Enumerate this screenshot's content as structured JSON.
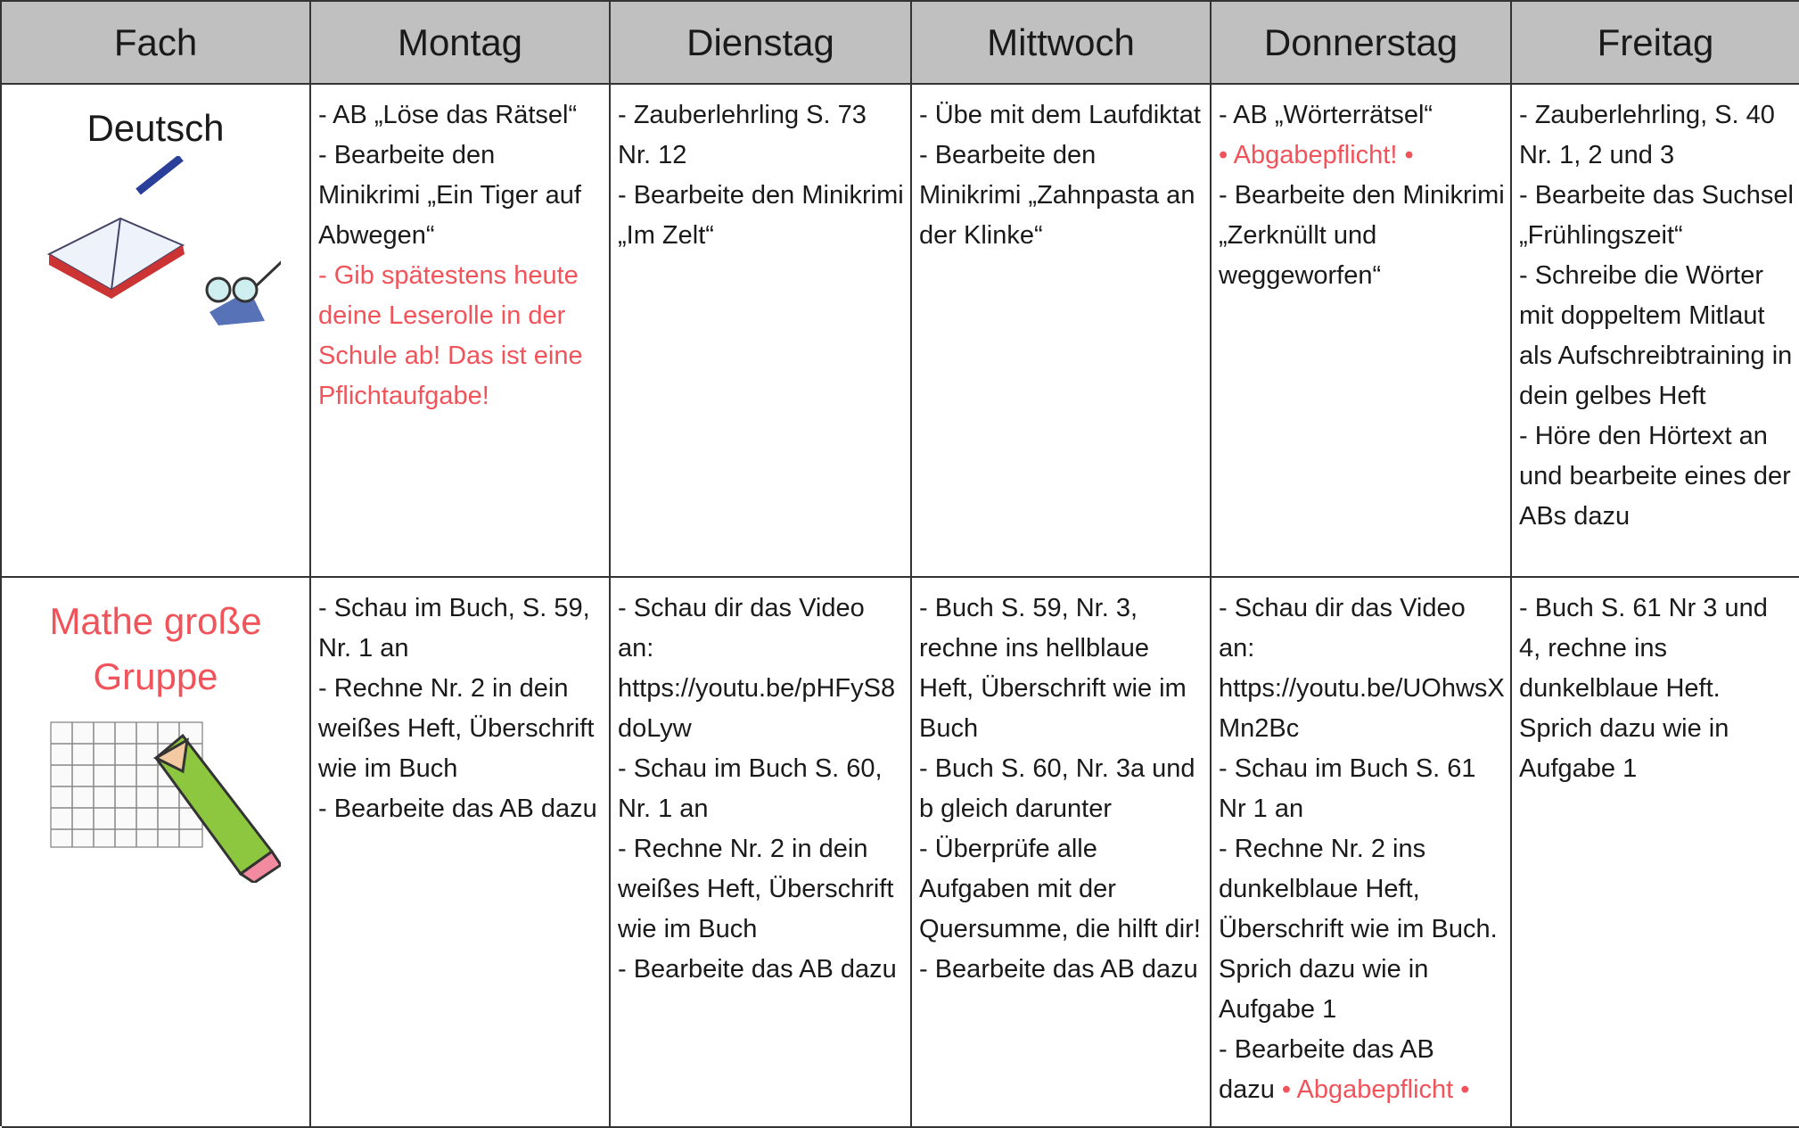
{
  "table": {
    "header_color": "#c0c0c0",
    "header": [
      "Fach",
      "Montag",
      "Dienstag",
      "Mittwoch",
      "Donnerstag",
      "Freitag"
    ],
    "rows": [
      {
        "subject": {
          "text": "Deutsch",
          "color": "#1a1a1a"
        },
        "cells": [
          [
            [
              {
                "text": "- AB „Löse das Rätsel“",
                "color": "#1a1a1a"
              }
            ],
            [
              {
                "text": "- Bearbeite den Minikrimi „Ein Tiger auf Abwegen“",
                "color": "#1a1a1a"
              }
            ],
            [
              {
                "text": "- Gib spätestens heute deine Leserolle in der Schule ab! Das ist eine Pflichtaufgabe!",
                "color": "#f0545a"
              }
            ]
          ],
          [
            [
              {
                "text": "- Zauberlehrling S. 73 Nr. 12",
                "color": "#1a1a1a"
              }
            ],
            [
              {
                "text": "- Bearbeite den Minikrimi „Im Zelt“",
                "color": "#1a1a1a"
              }
            ]
          ],
          [
            [
              {
                "text": "- Übe mit dem Laufdiktat",
                "color": "#1a1a1a"
              }
            ],
            [
              {
                "text": "- Bearbeite den Minikrimi „Zahnpasta an der Klinke“",
                "color": "#1a1a1a"
              }
            ]
          ],
          [
            [
              {
                "text": "- AB „Wörterrätsel“",
                "color": "#1a1a1a"
              }
            ],
            [
              {
                "text": "• Abgabepflicht! •",
                "color": "#f0545a"
              }
            ],
            [
              {
                "text": "- Bearbeite den Minikrimi „Zerknüllt und weggeworfen“",
                "color": "#1a1a1a"
              }
            ]
          ],
          [
            [
              {
                "text": "- Zauberlehrling, S. 40 Nr. 1, 2 und 3",
                "color": "#1a1a1a"
              }
            ],
            [
              {
                "text": "- Bearbeite das Suchsel „Frühlingszeit“",
                "color": "#1a1a1a"
              }
            ],
            [
              {
                "text": "- Schreibe die Wörter mit doppeltem Mitlaut als Aufschreibtraining in dein gelbes Heft",
                "color": "#1a1a1a"
              }
            ],
            [
              {
                "text": "- Höre den Hörtext an und bearbeite eines der ABs dazu",
                "color": "#1a1a1a"
              }
            ]
          ]
        ]
      },
      {
        "subject": {
          "text": "Mathe große Gruppe",
          "color": "#f0545a"
        },
        "cells": [
          [
            [
              {
                "text": "- Schau im Buch, S. 59, Nr. 1 an",
                "color": "#1a1a1a"
              }
            ],
            [
              {
                "text": "- Rechne Nr. 2 in dein weißes Heft, Überschrift wie im Buch",
                "color": "#1a1a1a"
              }
            ],
            [
              {
                "text": "- Bearbeite das AB dazu",
                "color": "#1a1a1a"
              }
            ]
          ],
          [
            [
              {
                "text": "- Schau dir das Video an: https://youtu.be/pHFyS8doLyw",
                "color": "#1a1a1a"
              }
            ],
            [
              {
                "text": "- Schau im Buch S. 60, Nr. 1 an",
                "color": "#1a1a1a"
              }
            ],
            [
              {
                "text": "- Rechne Nr. 2 in dein weißes Heft, Überschrift wie im Buch",
                "color": "#1a1a1a"
              }
            ],
            [
              {
                "text": "- Bearbeite das AB dazu",
                "color": "#1a1a1a"
              }
            ]
          ],
          [
            [
              {
                "text": "- Buch S. 59, Nr. 3, rechne ins hellblaue Heft, Überschrift wie im Buch",
                "color": "#1a1a1a"
              }
            ],
            [
              {
                "text": "- Buch S. 60, Nr. 3a und b gleich darunter",
                "color": "#1a1a1a"
              }
            ],
            [
              {
                "text": "- Überprüfe alle Aufgaben mit der Quersumme, die hilft dir!",
                "color": "#1a1a1a"
              }
            ],
            [
              {
                "text": "- Bearbeite das AB dazu",
                "color": "#1a1a1a"
              }
            ]
          ],
          [
            [
              {
                "text": "- Schau dir das Video an: https://youtu.be/UOhwsXMn2Bc",
                "color": "#1a1a1a"
              }
            ],
            [
              {
                "text": "- Schau im Buch S. 61 Nr 1 an",
                "color": "#1a1a1a"
              }
            ],
            [
              {
                "text": "- Rechne Nr. 2 ins dunkelblaue Heft, Überschrift wie im Buch. Sprich dazu wie in Aufgabe 1",
                "color": "#1a1a1a"
              }
            ],
            [
              {
                "text": "- Bearbeite das AB dazu",
                "color": "#1a1a1a"
              },
              {
                "text": "• Abgabepflicht •",
                "color": "#f0545a"
              }
            ]
          ],
          [
            [
              {
                "text": "- Buch S. 61 Nr 3 und 4, rechne ins dunkelblaue Heft. Sprich dazu wie in Aufgabe 1",
                "color": "#1a1a1a"
              }
            ]
          ]
        ]
      }
    ]
  }
}
